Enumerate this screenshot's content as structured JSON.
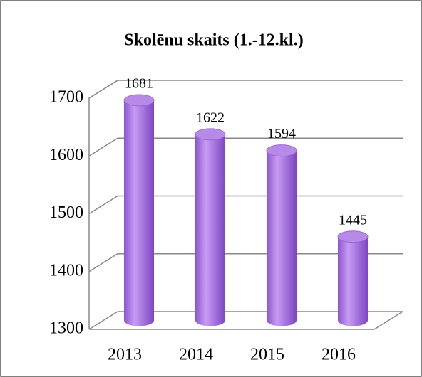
{
  "chart_data": {
    "type": "bar3d",
    "title": "Skolēnu skaits (1.-12.kl.)",
    "categories": [
      "2013",
      "2014",
      "2015",
      "2016"
    ],
    "values": [
      1681,
      1622,
      1594,
      1445
    ],
    "color": "#a66ee0",
    "ylim": [
      1300,
      1700
    ],
    "yticks": [
      1300,
      1400,
      1500,
      1600,
      1700
    ],
    "grid": true
  }
}
